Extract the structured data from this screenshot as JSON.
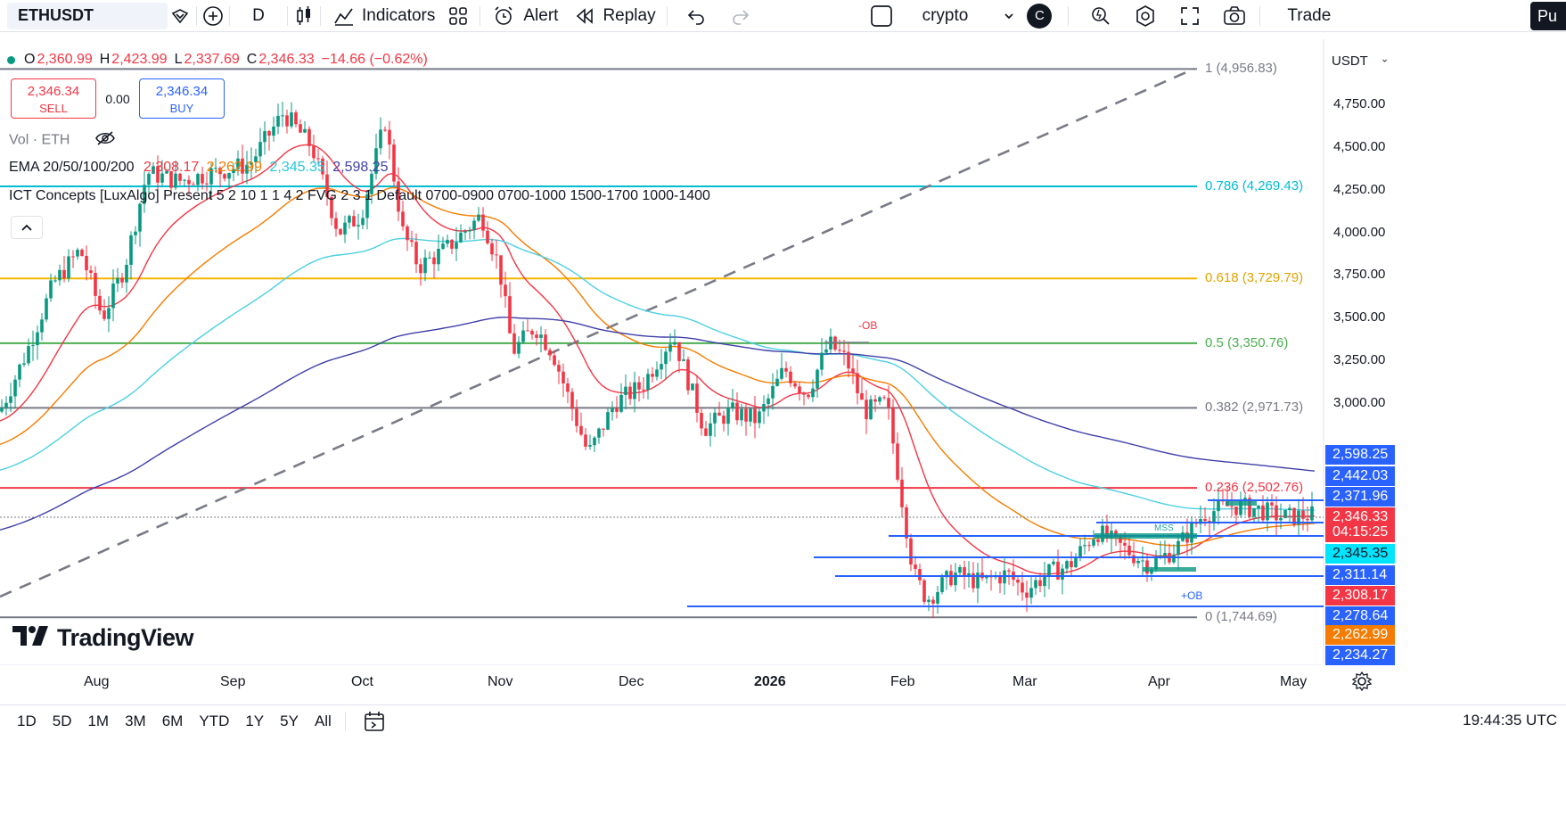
{
  "toolbar": {
    "symbol": "ETHUSDT",
    "interval": "D",
    "indicators_label": "Indicators",
    "alert_label": "Alert",
    "replay_label": "Replay",
    "layout_name": "crypto",
    "avatar_letter": "C",
    "trade_label": "Trade",
    "publish_label": "Pu"
  },
  "legend": {
    "o_label": "O",
    "o_value": "2,360.99",
    "h_label": "H",
    "h_value": "2,423.99",
    "l_label": "L",
    "l_value": "2,337.69",
    "c_label": "C",
    "c_value": "2,346.33",
    "change": "−14.66 (−0.62%)",
    "sell_price": "2,346.34",
    "sell_label": "SELL",
    "spread": "0.00",
    "buy_price": "2,346.34",
    "buy_label": "BUY",
    "vol_label": "Vol · ETH",
    "ema_label": "EMA 20/50/100/200",
    "ema20": "2,308.17",
    "ema50": "2,262.99",
    "ema100": "2,345.35",
    "ema200": "2,598.25",
    "ict_label": "ICT Concepts [LuxAlgo] Present 5 2 10 1 1 4 2 FVG 2 3 1 Default 0700-0900 0700-1000 1500-1700 1000-1400"
  },
  "price_axis": {
    "currency": "USDT",
    "ticks": [
      {
        "label": "4,750.00",
        "price": 4750
      },
      {
        "label": "4,500.00",
        "price": 4500
      },
      {
        "label": "4,250.00",
        "price": 4250
      },
      {
        "label": "4,000.00",
        "price": 4000
      },
      {
        "label": "3,750.00",
        "price": 3750
      },
      {
        "label": "3,500.00",
        "price": 3500
      },
      {
        "label": "3,250.00",
        "price": 3250
      },
      {
        "label": "3,000.00",
        "price": 3000
      }
    ],
    "badges": [
      {
        "label": "2,598.25",
        "color": "#2962ff"
      },
      {
        "label": "2,442.03",
        "color": "#2962ff"
      },
      {
        "label": "2,371.96",
        "color": "#2962ff"
      },
      {
        "label": "2,346.33",
        "color": "#f23645"
      },
      {
        "label": "04:15:25",
        "color": "#f23645"
      },
      {
        "label": "2,345.35",
        "color": "#00e5ff"
      },
      {
        "label": "2,311.14",
        "color": "#2962ff"
      },
      {
        "label": "2,308.17",
        "color": "#f23645"
      },
      {
        "label": "2,278.64",
        "color": "#2962ff"
      },
      {
        "label": "2,262.99",
        "color": "#f57c00"
      },
      {
        "label": "2,234.27",
        "color": "#2962ff"
      }
    ]
  },
  "fib_levels": [
    {
      "label": "1 (4,956.83)",
      "price": 4956.83,
      "color": "#787b86"
    },
    {
      "label": "0.786 (4,269.43)",
      "price": 4269.43,
      "color": "#00bcd4"
    },
    {
      "label": "0.618 (3,729.79)",
      "price": 3729.79,
      "color": "#f7b500"
    },
    {
      "label": "0.5 (3,350.76)",
      "price": 3350.76,
      "color": "#4caf50"
    },
    {
      "label": "0.382 (2,971.73)",
      "price": 2971.73,
      "color": "#787b86"
    },
    {
      "label": "0.236 (2,502.76)",
      "price": 2502.76,
      "color": "#f23645"
    },
    {
      "label": "0 (1,744.69)",
      "price": 1744.69,
      "color": "#787b86"
    }
  ],
  "annotations": {
    "minus_ob": "-OB",
    "plus_ob": "+OB",
    "mss": "MSS"
  },
  "time_axis": [
    "Aug",
    "Sep",
    "Oct",
    "Nov",
    "Dec",
    "2026",
    "Feb",
    "Mar",
    "Apr",
    "May"
  ],
  "ranges": [
    "1D",
    "5D",
    "1M",
    "3M",
    "6M",
    "YTD",
    "1Y",
    "5Y",
    "All"
  ],
  "clock": "19:44:35 UTC",
  "brand": "TradingView",
  "colors": {
    "up": "#089981",
    "down": "#f23645",
    "ema20": "#f23645",
    "ema50": "#f57c00",
    "ema100": "#4dd0e1",
    "ema200": "#3f3fa8",
    "ob": "#2962ff"
  }
}
